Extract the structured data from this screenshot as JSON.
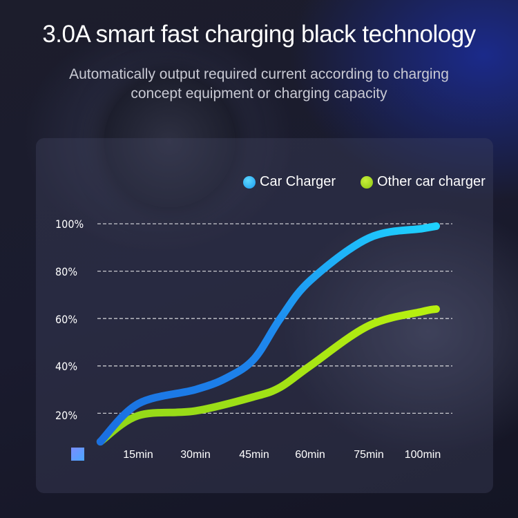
{
  "header": {
    "title": "3.0A smart fast charging black technology",
    "subtitle": "Automatically output required current according to charging concept equipment or charging capacity"
  },
  "chart_data": {
    "type": "line",
    "title": "",
    "xlabel": "",
    "ylabel": "",
    "x_ticks": [
      "15min",
      "30min",
      "45min",
      "60min",
      "75min",
      "100min"
    ],
    "y_ticks": [
      "20%",
      "40%",
      "60%",
      "80%",
      "100%"
    ],
    "ylim": [
      0,
      100
    ],
    "grid": "horizontal dashed",
    "legend": "top-right",
    "series": [
      {
        "name": "Car Charger",
        "color": "#1ec8ff",
        "color_start": "#1a6fe0",
        "x": [
          5,
          15,
          30,
          38,
          45,
          52,
          60,
          75,
          100,
          105
        ],
        "y": [
          8,
          24,
          30,
          35,
          43,
          60,
          76,
          94,
          98,
          99
        ]
      },
      {
        "name": "Other car charger",
        "color": "#a6e612",
        "color_start": "#8fd61a",
        "x": [
          5,
          15,
          30,
          45,
          52,
          60,
          75,
          100,
          105
        ],
        "y": [
          8,
          19,
          21,
          27,
          31,
          40,
          57,
          63,
          64
        ]
      }
    ]
  }
}
